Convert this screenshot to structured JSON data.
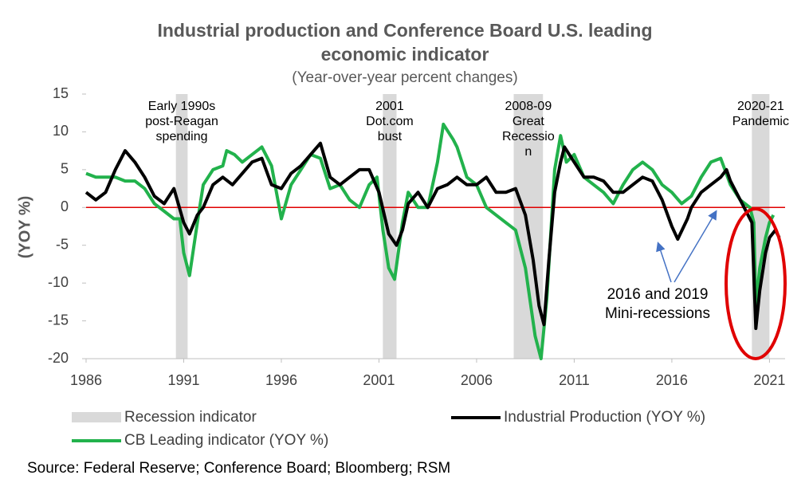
{
  "chart_data": {
    "type": "line",
    "title": [
      "Industrial production and Conference Board U.S. leading",
      "economic indicator"
    ],
    "subtitle": "(Year-over-year percent changes)",
    "y_label": "(YOY %)",
    "source": "Source: Federal Reserve; Conference Board;  Bloomberg; RSM",
    "xlim": [
      1986,
      2021.8
    ],
    "xticks": [
      1986,
      1991,
      1996,
      2001,
      2006,
      2011,
      2016,
      2021
    ],
    "ylim": [
      -20,
      15
    ],
    "yticks": [
      -20,
      -15,
      -10,
      -5,
      0,
      5,
      10,
      15
    ],
    "recessions": {
      "name": "Recession indicator",
      "color": "#d9d9d9",
      "ranges": [
        [
          1990.6,
          1991.2
        ],
        [
          2001.2,
          2001.9
        ],
        [
          2007.9,
          2009.4
        ],
        [
          2020.1,
          2021.0
        ]
      ],
      "labels": [
        [
          "Early 1990s",
          "post-Reagan",
          "spending"
        ],
        [
          "2001",
          "Dot.com",
          "bust"
        ],
        [
          "2008-09",
          "Great",
          "Recessio",
          "n"
        ],
        [
          "2020-21",
          "Pandemic"
        ]
      ]
    },
    "annotation": [
      "2016 and 2019",
      "Mini-recessions"
    ],
    "series": [
      {
        "name": "Industrial Production (YOY %)",
        "color": "#000000",
        "x": [
          1986.0,
          1986.5,
          1987.0,
          1987.5,
          1988.0,
          1988.5,
          1989.0,
          1989.5,
          1990.0,
          1990.5,
          1991.0,
          1991.3,
          1991.7,
          1992.0,
          1992.5,
          1993.0,
          1993.5,
          1994.0,
          1994.5,
          1995.0,
          1995.5,
          1996.0,
          1996.5,
          1997.0,
          1997.5,
          1998.0,
          1998.5,
          1999.0,
          1999.5,
          2000.0,
          2000.5,
          2001.0,
          2001.5,
          2001.9,
          2002.2,
          2002.5,
          2003.0,
          2003.5,
          2004.0,
          2004.5,
          2005.0,
          2005.5,
          2006.0,
          2006.5,
          2007.0,
          2007.5,
          2008.0,
          2008.5,
          2008.9,
          2009.2,
          2009.45,
          2009.7,
          2010.0,
          2010.3,
          2010.5,
          2011.0,
          2011.5,
          2012.0,
          2012.5,
          2013.0,
          2013.5,
          2014.0,
          2014.5,
          2015.0,
          2015.5,
          2016.0,
          2016.3,
          2016.8,
          2017.0,
          2017.5,
          2018.0,
          2018.5,
          2018.8,
          2019.0,
          2019.5,
          2019.9,
          2020.1,
          2020.3,
          2020.5,
          2020.8,
          2021.0,
          2021.3,
          2021.5
        ],
        "values": [
          2,
          1,
          2,
          5,
          7.5,
          6,
          4,
          1.5,
          0.5,
          2.5,
          -2,
          -3.5,
          -1,
          0,
          3,
          4,
          3,
          4.5,
          6,
          6.5,
          3,
          2.5,
          4.5,
          5.5,
          7,
          8.5,
          4,
          3,
          4,
          5,
          5,
          2,
          -3.5,
          -5,
          -3,
          0.5,
          2,
          0,
          2.5,
          3,
          4,
          3,
          3,
          4,
          2,
          2,
          2.5,
          -1,
          -7,
          -13,
          -15.5,
          -7,
          2,
          6,
          8,
          6,
          4,
          4,
          3.5,
          2,
          2,
          3,
          4,
          3.5,
          1,
          -2.5,
          -4.2,
          -1.5,
          0,
          2,
          3,
          4,
          5,
          3.5,
          1,
          -1,
          -2,
          -16,
          -11,
          -6,
          -4,
          -3,
          -4
        ]
      },
      {
        "name": "CB Leading indicator (YOY %)",
        "color": "#22b24c",
        "x": [
          1986.0,
          1986.5,
          1987.0,
          1987.5,
          1988.0,
          1988.5,
          1989.0,
          1989.5,
          1990.0,
          1990.5,
          1990.8,
          1991.0,
          1991.3,
          1991.7,
          1992.0,
          1992.5,
          1993.0,
          1993.2,
          1993.6,
          1994.0,
          1994.5,
          1995.0,
          1995.5,
          1996.0,
          1996.5,
          1997.0,
          1997.5,
          1998.0,
          1998.5,
          1999.0,
          1999.5,
          2000.0,
          2000.5,
          2000.9,
          2001.2,
          2001.5,
          2001.8,
          2002.2,
          2002.5,
          2003.0,
          2003.5,
          2004.0,
          2004.3,
          2004.8,
          2005.0,
          2005.5,
          2006.0,
          2006.5,
          2007.0,
          2007.5,
          2008.0,
          2008.5,
          2009.0,
          2009.3,
          2009.6,
          2010.0,
          2010.3,
          2010.6,
          2011.0,
          2011.5,
          2012.0,
          2012.5,
          2013.0,
          2013.5,
          2014.0,
          2014.5,
          2015.0,
          2015.5,
          2016.0,
          2016.5,
          2017.0,
          2017.5,
          2018.0,
          2018.5,
          2019.0,
          2019.5,
          2020.0,
          2020.2,
          2020.3,
          2020.5,
          2020.8,
          2021.0,
          2021.2
        ],
        "values": [
          4.5,
          4,
          4,
          4,
          3.5,
          3.5,
          2.5,
          0.5,
          -0.5,
          -1.5,
          -1.5,
          -6,
          -9,
          -2,
          3,
          5,
          5.5,
          7.5,
          7,
          6,
          7,
          8,
          5.5,
          -1.5,
          3,
          5,
          7,
          6.5,
          2.5,
          3,
          1,
          0,
          3,
          4,
          -3,
          -8,
          -9.5,
          -2,
          2,
          0,
          0,
          6,
          11,
          9,
          8,
          4,
          3,
          0,
          -1,
          -2,
          -3,
          -8,
          -17,
          -20,
          -12,
          5,
          9.5,
          6,
          7,
          4,
          3,
          2,
          0.5,
          3,
          5,
          6,
          5,
          3,
          2,
          0.5,
          1.5,
          4,
          6,
          6.5,
          3,
          1,
          0,
          -2,
          -13,
          -8,
          -4,
          -2,
          -1
        ]
      }
    ]
  }
}
